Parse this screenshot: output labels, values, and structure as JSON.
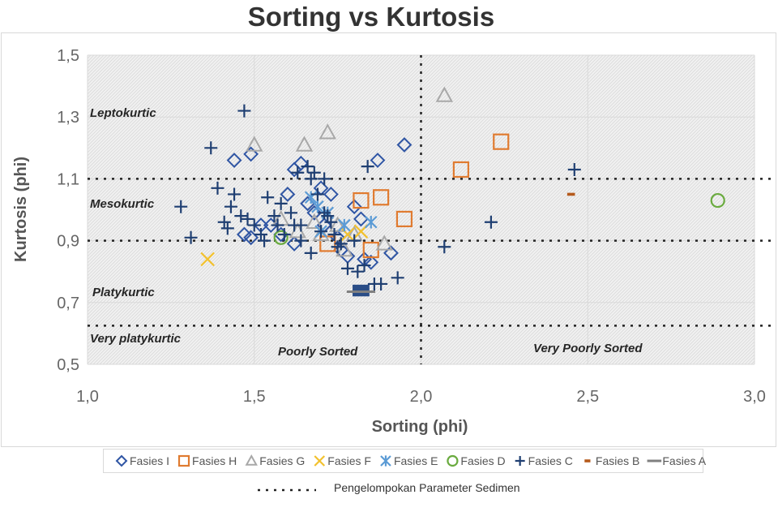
{
  "chart_data": {
    "type": "scatter",
    "title": "Sorting vs Kurtosis",
    "xlabel": "Sorting (phi)",
    "ylabel": "Kurtosis (phi)",
    "xlim": [
      1.0,
      3.0
    ],
    "ylim": [
      0.5,
      1.5
    ],
    "xticks": [
      "1,0",
      "1,5",
      "2,0",
      "2,5",
      "3,0"
    ],
    "yticks": [
      "0,5",
      "0,7",
      "0,9",
      "1,1",
      "1,3",
      "1,5"
    ],
    "grid": true,
    "legend_position": "bottom",
    "zone_labels": {
      "leptokurtic": "Leptokurtic",
      "mesokurtic": "Mesokurtic",
      "platykurtic": "Platykurtic",
      "very_platykurtic": "Very platykurtic",
      "poorly_sorted": "Poorly Sorted",
      "very_poorly_sorted": "Very Poorly Sorted"
    },
    "reference_lines": {
      "label": "Pengelompokan Parameter Sedimen",
      "horizontal": [
        0.625,
        0.9,
        1.1
      ],
      "vertical": [
        2.0
      ]
    },
    "series": [
      {
        "name": "Fasies I",
        "marker": "diamond",
        "color": "#2f55a4",
        "points": [
          [
            1.44,
            1.16
          ],
          [
            1.49,
            1.18
          ],
          [
            1.47,
            0.92
          ],
          [
            1.49,
            0.91
          ],
          [
            1.52,
            0.95
          ],
          [
            1.55,
            0.95
          ],
          [
            1.58,
            0.92
          ],
          [
            1.6,
            1.05
          ],
          [
            1.62,
            1.13
          ],
          [
            1.64,
            1.15
          ],
          [
            1.66,
            1.02
          ],
          [
            1.68,
            0.99
          ],
          [
            1.7,
            1.07
          ],
          [
            1.73,
            1.05
          ],
          [
            1.76,
            0.87
          ],
          [
            1.78,
            0.85
          ],
          [
            1.8,
            1.01
          ],
          [
            1.83,
            0.84
          ],
          [
            1.85,
            0.83
          ],
          [
            1.87,
            1.16
          ],
          [
            1.91,
            0.86
          ],
          [
            1.95,
            1.21
          ],
          [
            1.62,
            0.89
          ],
          [
            1.71,
            0.95
          ],
          [
            1.75,
            0.91
          ],
          [
            1.82,
            0.97
          ]
        ]
      },
      {
        "name": "Fasies H",
        "marker": "square",
        "color": "#e07b30",
        "points": [
          [
            1.82,
            1.03
          ],
          [
            1.88,
            1.04
          ],
          [
            1.95,
            0.97
          ],
          [
            2.12,
            1.13
          ],
          [
            2.24,
            1.22
          ],
          [
            1.85,
            0.87
          ],
          [
            1.72,
            0.89
          ]
        ]
      },
      {
        "name": "Fasies G",
        "marker": "triangle",
        "color": "#a8a8a8",
        "points": [
          [
            1.5,
            1.21
          ],
          [
            1.65,
            1.21
          ],
          [
            1.72,
            1.25
          ],
          [
            2.07,
            1.37
          ],
          [
            1.58,
            0.97
          ],
          [
            1.63,
            0.93
          ],
          [
            1.68,
            0.96
          ],
          [
            1.75,
            0.95
          ],
          [
            1.8,
            0.92
          ],
          [
            1.89,
            0.89
          ],
          [
            1.77,
            0.87
          ],
          [
            1.7,
            0.92
          ]
        ]
      },
      {
        "name": "Fasies F",
        "marker": "x",
        "color": "#f2c12e",
        "points": [
          [
            1.36,
            0.84
          ],
          [
            1.82,
            0.93
          ],
          [
            1.78,
            0.92
          ]
        ]
      },
      {
        "name": "Fasies E",
        "marker": "asterisk",
        "color": "#5b9bd5",
        "points": [
          [
            1.67,
            1.04
          ],
          [
            1.69,
            1.01
          ],
          [
            1.72,
            0.99
          ],
          [
            1.85,
            0.96
          ],
          [
            1.77,
            0.95
          ],
          [
            1.7,
            0.93
          ]
        ]
      },
      {
        "name": "Fasies D",
        "marker": "circle",
        "color": "#6aab3f",
        "points": [
          [
            2.89,
            1.03
          ],
          [
            1.58,
            0.91
          ]
        ]
      },
      {
        "name": "Fasies C",
        "marker": "plus",
        "color": "#1f3f72",
        "points": [
          [
            1.47,
            1.32
          ],
          [
            1.37,
            1.2
          ],
          [
            1.28,
            1.01
          ],
          [
            1.31,
            0.91
          ],
          [
            1.39,
            1.07
          ],
          [
            1.41,
            0.96
          ],
          [
            1.42,
            0.94
          ],
          [
            1.43,
            1.01
          ],
          [
            1.44,
            1.05
          ],
          [
            1.46,
            0.98
          ],
          [
            1.48,
            0.97
          ],
          [
            1.5,
            0.95
          ],
          [
            1.52,
            0.92
          ],
          [
            1.53,
            0.9
          ],
          [
            1.54,
            1.04
          ],
          [
            1.56,
            0.98
          ],
          [
            1.57,
            0.95
          ],
          [
            1.58,
            1.02
          ],
          [
            1.59,
            0.92
          ],
          [
            1.61,
            0.99
          ],
          [
            1.62,
            0.95
          ],
          [
            1.63,
            1.12
          ],
          [
            1.64,
            0.9
          ],
          [
            1.66,
            1.14
          ],
          [
            1.67,
            1.1
          ],
          [
            1.68,
            1.12
          ],
          [
            1.69,
            1.05
          ],
          [
            1.7,
            0.93
          ],
          [
            1.71,
            1.1
          ],
          [
            1.72,
            0.98
          ],
          [
            1.73,
            0.96
          ],
          [
            1.74,
            0.92
          ],
          [
            1.75,
            0.88
          ],
          [
            1.76,
            0.89
          ],
          [
            1.78,
            0.81
          ],
          [
            1.8,
            0.9
          ],
          [
            1.81,
            0.8
          ],
          [
            1.83,
            0.82
          ],
          [
            1.84,
            1.14
          ],
          [
            1.86,
            0.76
          ],
          [
            1.88,
            0.76
          ],
          [
            1.93,
            0.78
          ],
          [
            2.07,
            0.88
          ],
          [
            2.21,
            0.96
          ],
          [
            2.46,
            1.13
          ],
          [
            1.67,
            0.86
          ],
          [
            1.71,
            0.99
          ],
          [
            1.64,
            0.95
          ]
        ]
      },
      {
        "name": "Fasies B",
        "marker": "dash",
        "color": "#b55a1c",
        "points": [
          [
            2.45,
            1.05
          ]
        ]
      },
      {
        "name": "Fasies A",
        "marker": "bar",
        "color": "#808080",
        "points": [
          [
            1.82,
            0.735
          ]
        ]
      }
    ],
    "extra_markers": [
      {
        "marker": "block",
        "color": "#2a4d87",
        "points": [
          [
            1.82,
            0.745
          ]
        ]
      }
    ]
  }
}
